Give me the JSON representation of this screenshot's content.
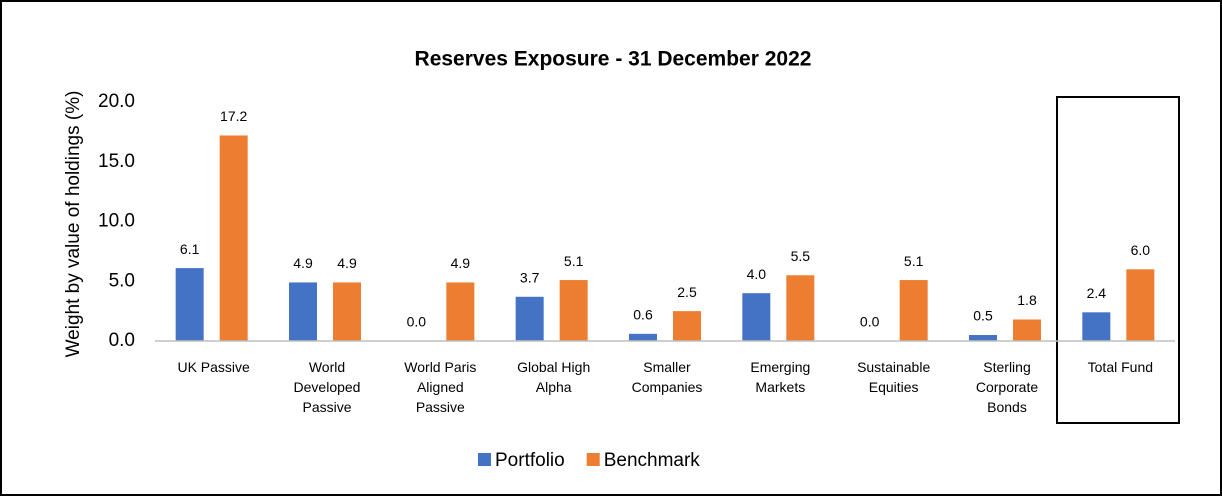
{
  "chart_data": {
    "type": "bar",
    "title": "Reserves Exposure - 31 December 2022",
    "y_label": "Weight by value of holdings (%)",
    "categories": [
      "UK Passive",
      "World Developed Passive",
      "World Paris Aligned Passive",
      "Global High Alpha",
      "Smaller Companies",
      "Emerging Markets",
      "Sustainable Equities",
      "Sterling Corporate Bonds",
      "Total Fund"
    ],
    "series": [
      {
        "name": "Portfolio",
        "color": "#4472c4",
        "values": [
          6.1,
          4.9,
          0.0,
          3.7,
          0.6,
          4.0,
          0.0,
          0.5,
          2.4
        ],
        "value_labels": [
          "6.1",
          "4.9",
          "0.0",
          "3.7",
          "0.6",
          "4.0",
          "0.0",
          "0.5",
          "2.4"
        ]
      },
      {
        "name": "Benchmark",
        "color": "#ed7d31",
        "values": [
          17.2,
          4.9,
          4.9,
          5.1,
          2.5,
          5.5,
          5.1,
          1.8,
          6.0
        ],
        "value_labels": [
          "17.2",
          "4.9",
          "4.9",
          "5.1",
          "2.5",
          "5.5",
          "5.1",
          "1.8",
          "6.0"
        ]
      }
    ],
    "ylim": [
      0,
      20
    ],
    "yticks": [
      {
        "value": 0,
        "label": "0.0"
      },
      {
        "value": 5,
        "label": "5.0"
      },
      {
        "value": 10,
        "label": "10.0"
      },
      {
        "value": 15,
        "label": "15.0"
      },
      {
        "value": 20,
        "label": "20.0"
      }
    ],
    "grid": false,
    "legend": "bottom"
  }
}
